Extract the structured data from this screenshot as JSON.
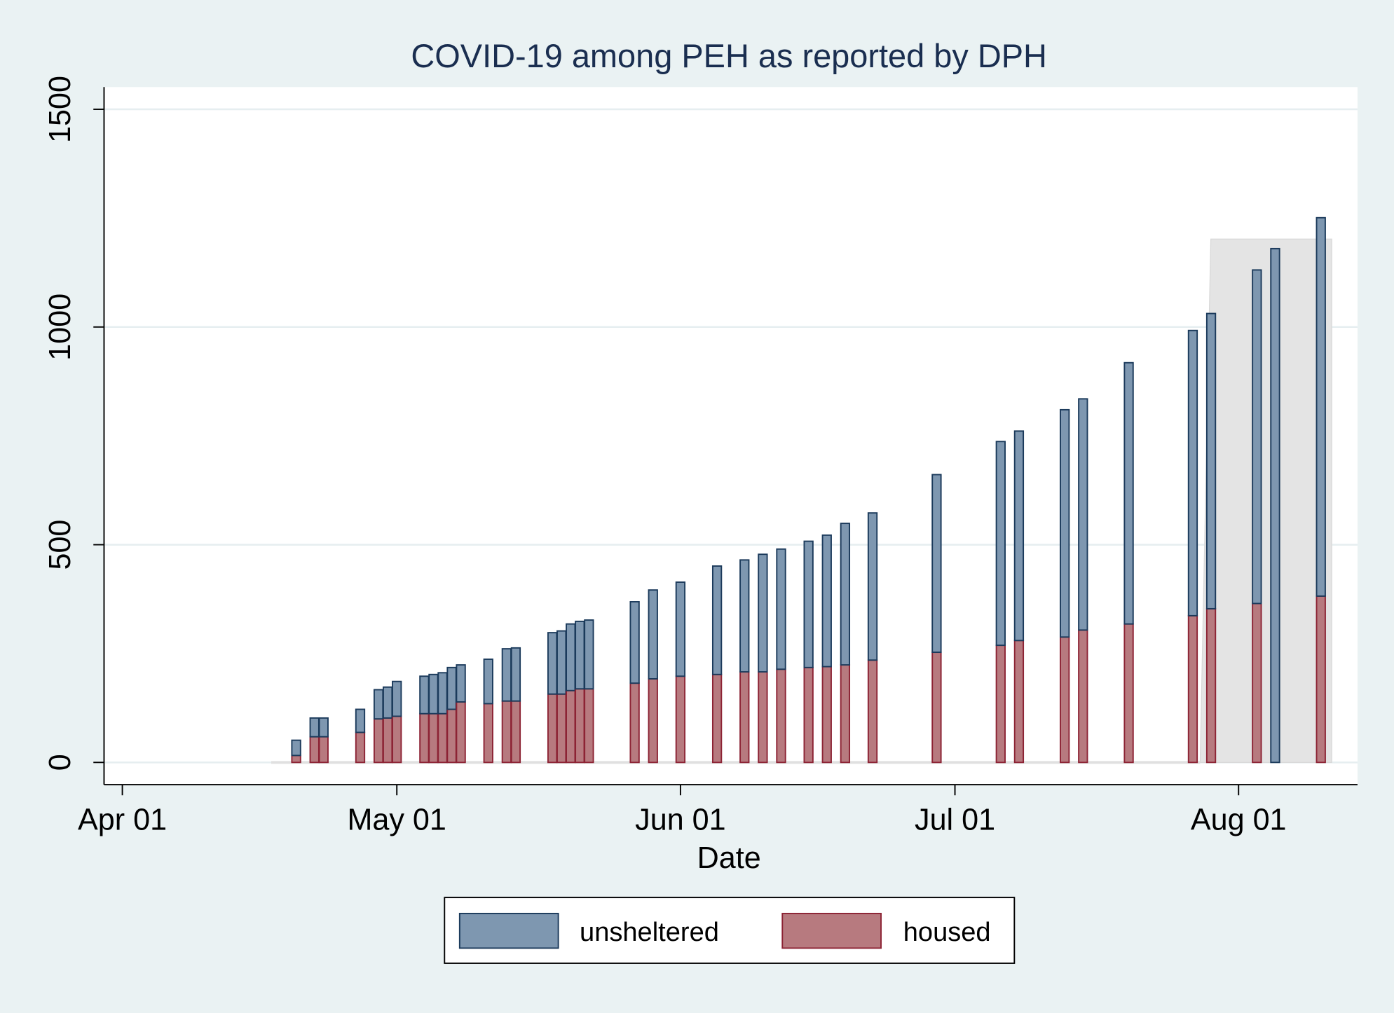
{
  "chart_data": {
    "type": "bar",
    "stacked": true,
    "title": "COVID-19 among PEH as reported by DPH",
    "x_label": "Date",
    "x": [
      "Apr 20",
      "Apr 22",
      "Apr 23",
      "Apr 27",
      "Apr 29",
      "Apr 30",
      "May 01",
      "May 04",
      "May 05",
      "May 06",
      "May 07",
      "May 08",
      "May 11",
      "May 13",
      "May 14",
      "May 18",
      "May 19",
      "May 20",
      "May 21",
      "May 22",
      "May 27",
      "May 29",
      "Jun 01",
      "Jun 05",
      "Jun 08",
      "Jun 10",
      "Jun 12",
      "Jun 15",
      "Jun 17",
      "Jun 19",
      "Jun 22",
      "Jun 29",
      "Jul 06",
      "Jul 08",
      "Jul 13",
      "Jul 15",
      "Jul 20",
      "Jul 27",
      "Jul 29",
      "Aug 03",
      "Aug 05",
      "Aug 10"
    ],
    "series": [
      {
        "name": "unsheltered",
        "color": "#7e97b0",
        "edge": "#1b3a5b",
        "values": [
          35,
          43,
          43,
          53,
          67,
          71,
          80,
          86,
          90,
          94,
          96,
          85,
          102,
          120,
          122,
          141,
          145,
          153,
          155,
          158,
          187,
          204,
          216,
          249,
          257,
          270,
          276,
          290,
          302,
          325,
          338,
          408,
          468,
          481,
          522,
          531,
          600,
          655,
          678,
          766,
          1180,
          869
        ]
      },
      {
        "name": "housed",
        "color": "#b77a7f",
        "edge": "#8c2334",
        "values": [
          16,
          59,
          59,
          69,
          100,
          102,
          106,
          112,
          112,
          112,
          122,
          139,
          135,
          141,
          141,
          157,
          157,
          165,
          169,
          169,
          182,
          192,
          198,
          202,
          208,
          208,
          214,
          218,
          220,
          224,
          235,
          253,
          269,
          280,
          288,
          304,
          318,
          337,
          353,
          365,
          0,
          382
        ]
      }
    ],
    "xlim": [
      "Mar 30",
      "Aug 14"
    ],
    "xticks": [
      "Apr 01",
      "May 01",
      "Jun 01",
      "Jul 01",
      "Aug 01"
    ],
    "ylim": [
      -51,
      1551
    ],
    "yticks": [
      0,
      500,
      1000,
      1500
    ],
    "grid": true
  }
}
